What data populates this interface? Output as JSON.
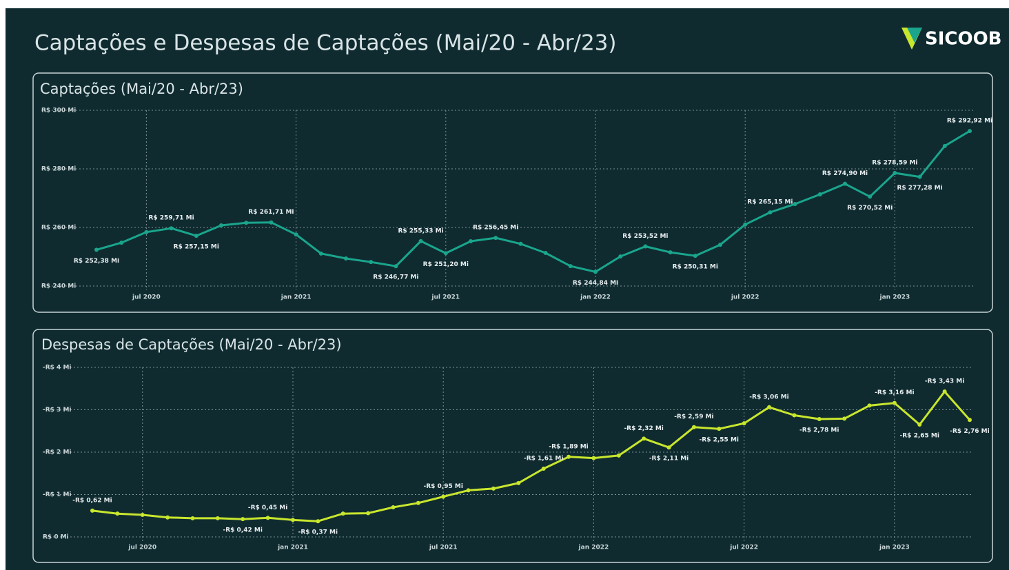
{
  "title": "Captações e Despesas de Captações (Mai/20 - Abr/23)",
  "logo": "SICOOB",
  "chart_data": [
    {
      "type": "line",
      "title": "Captações (Mai/20 - Abr/23)",
      "x": [
        "2020-05",
        "2020-06",
        "2020-07",
        "2020-08",
        "2020-09",
        "2020-10",
        "2020-11",
        "2020-12",
        "2021-01",
        "2021-02",
        "2021-03",
        "2021-04",
        "2021-05",
        "2021-06",
        "2021-07",
        "2021-08",
        "2021-09",
        "2021-10",
        "2021-11",
        "2021-12",
        "2022-01",
        "2022-02",
        "2022-03",
        "2022-04",
        "2022-05",
        "2022-06",
        "2022-07",
        "2022-08",
        "2022-09",
        "2022-10",
        "2022-11",
        "2022-12",
        "2023-01",
        "2023-02",
        "2023-03",
        "2023-04"
      ],
      "series": [
        {
          "name": "Captações",
          "color": "#1aa58c",
          "values": [
            252.38,
            254.8,
            258.4,
            259.71,
            257.15,
            260.7,
            261.6,
            261.71,
            257.6,
            251.1,
            249.4,
            248.2,
            246.77,
            255.33,
            251.2,
            255.3,
            256.45,
            254.4,
            251.3,
            246.8,
            244.84,
            250.1,
            253.52,
            251.5,
            250.31,
            254.1,
            261.0,
            265.15,
            268.0,
            271.3,
            274.9,
            270.52,
            278.59,
            277.28,
            287.8,
            292.92
          ],
          "value_labels": [
            "R$ 252,38 Mi",
            null,
            null,
            "R$ 259,71 Mi",
            "R$ 257,15 Mi",
            null,
            null,
            "R$ 261,71 Mi",
            null,
            null,
            null,
            null,
            "R$ 246,77 Mi",
            "R$ 255,33 Mi",
            "R$ 251,20 Mi",
            null,
            "R$ 256,45 Mi",
            null,
            null,
            null,
            "R$ 244,84 Mi",
            null,
            "R$ 253,52 Mi",
            null,
            "R$ 250,31 Mi",
            null,
            null,
            "R$ 265,15 Mi",
            null,
            null,
            "R$ 274,90 Mi",
            "R$ 270,52 Mi",
            "R$ 278,59 Mi",
            "R$ 277,28 Mi",
            null,
            "R$ 292,92 Mi"
          ]
        }
      ],
      "ylim": [
        240,
        300
      ],
      "yticks": [
        {
          "value": 240,
          "label": "R$ 240 Mi"
        },
        {
          "value": 260,
          "label": "R$ 260 Mi"
        },
        {
          "value": 280,
          "label": "R$ 280 Mi"
        },
        {
          "value": 300,
          "label": "R$ 300 Mi"
        }
      ],
      "xticks": [
        {
          "value": "2020-07",
          "label": "jul 2020"
        },
        {
          "value": "2021-01",
          "label": "jan 2021"
        },
        {
          "value": "2021-07",
          "label": "jul 2021"
        },
        {
          "value": "2022-01",
          "label": "jan 2022"
        },
        {
          "value": "2022-07",
          "label": "jul 2022"
        },
        {
          "value": "2023-01",
          "label": "jan 2023"
        }
      ],
      "grid": true
    },
    {
      "type": "line",
      "title": "Despesas de Captações (Mai/20 - Abr/23)",
      "x": [
        "2020-05",
        "2020-06",
        "2020-07",
        "2020-08",
        "2020-09",
        "2020-10",
        "2020-11",
        "2020-12",
        "2021-01",
        "2021-02",
        "2021-03",
        "2021-04",
        "2021-05",
        "2021-06",
        "2021-07",
        "2021-08",
        "2021-09",
        "2021-10",
        "2021-11",
        "2021-12",
        "2022-01",
        "2022-02",
        "2022-03",
        "2022-04",
        "2022-05",
        "2022-06",
        "2022-07",
        "2022-08",
        "2022-09",
        "2022-10",
        "2022-11",
        "2022-12",
        "2023-01",
        "2023-02",
        "2023-03",
        "2023-04"
      ],
      "series": [
        {
          "name": "Despesas de Captações",
          "color": "#c8e62d",
          "values": [
            -0.62,
            -0.55,
            -0.52,
            -0.46,
            -0.44,
            -0.44,
            -0.42,
            -0.45,
            -0.4,
            -0.37,
            -0.55,
            -0.56,
            -0.7,
            -0.8,
            -0.95,
            -1.1,
            -1.14,
            -1.27,
            -1.61,
            -1.89,
            -1.86,
            -1.92,
            -2.32,
            -2.11,
            -2.59,
            -2.55,
            -2.68,
            -3.06,
            -2.87,
            -2.78,
            -2.79,
            -3.1,
            -3.16,
            -2.65,
            -3.43,
            -2.76
          ],
          "value_labels": [
            "-R$ 0,62 Mi",
            null,
            null,
            null,
            null,
            null,
            "-R$ 0,42 Mi",
            "-R$ 0,45 Mi",
            null,
            "-R$ 0,37 Mi",
            null,
            null,
            null,
            null,
            "-R$ 0,95 Mi",
            null,
            null,
            null,
            "-R$ 1,61 Mi",
            "-R$ 1,89 Mi",
            null,
            null,
            "-R$ 2,32 Mi",
            "-R$ 2,11 Mi",
            "-R$ 2,59 Mi",
            "-R$ 2,55 Mi",
            null,
            "-R$ 3,06 Mi",
            null,
            "-R$ 2,78 Mi",
            null,
            null,
            "-R$ 3,16 Mi",
            "-R$ 2,65 Mi",
            "-R$ 3,43 Mi",
            "-R$ 2,76 Mi"
          ]
        }
      ],
      "ylim": [
        0,
        -4
      ],
      "yticks": [
        {
          "value": 0,
          "label": "R$ 0 Mi"
        },
        {
          "value": -1,
          "label": "-R$ 1 Mi"
        },
        {
          "value": -2,
          "label": "-R$ 2 Mi"
        },
        {
          "value": -3,
          "label": "-R$ 3 Mi"
        },
        {
          "value": -4,
          "label": "-R$ 4 Mi"
        }
      ],
      "xticks": [
        {
          "value": "2020-07",
          "label": "jul 2020"
        },
        {
          "value": "2021-01",
          "label": "jan 2021"
        },
        {
          "value": "2021-07",
          "label": "jul 2021"
        },
        {
          "value": "2022-01",
          "label": "jan 2022"
        },
        {
          "value": "2022-07",
          "label": "jul 2022"
        },
        {
          "value": "2023-01",
          "label": "jan 2023"
        }
      ],
      "grid": true
    }
  ]
}
